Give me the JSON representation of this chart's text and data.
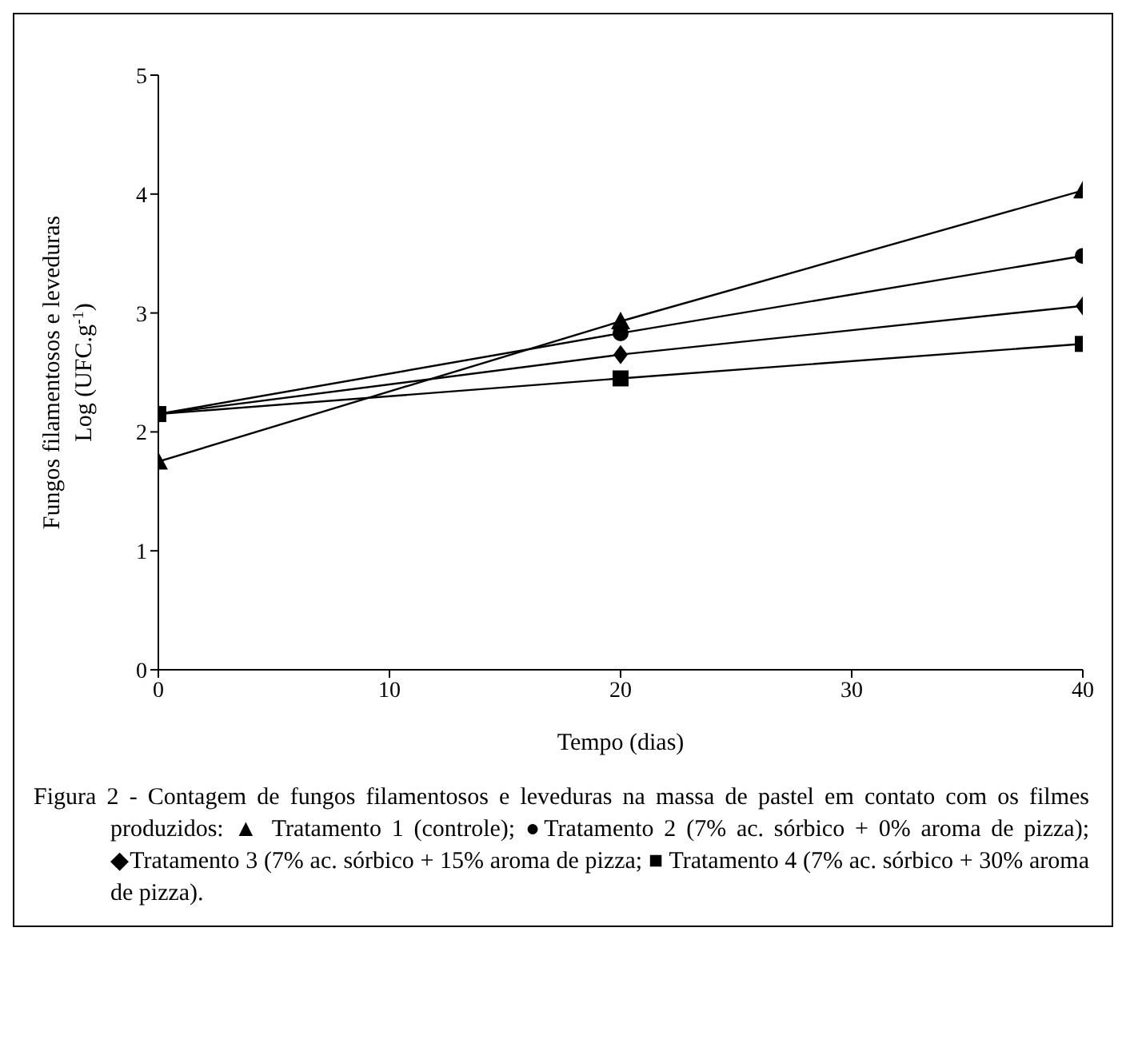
{
  "chart_data": {
    "type": "line",
    "xlabel": "Tempo (dias)",
    "ylabel": "Fungos filamentosos e leveduras\nLog (UFC.g$^{-1}$)",
    "x": [
      0,
      20,
      40
    ],
    "xlim": [
      0,
      40
    ],
    "xticks": [
      0,
      10,
      20,
      30,
      40
    ],
    "ylim": [
      0,
      5
    ],
    "yticks": [
      0,
      1,
      2,
      3,
      4,
      5
    ],
    "grid": false,
    "legend": false,
    "series": [
      {
        "color": "#000000",
        "marker": "triangle",
        "values": [
          1.75,
          2.93,
          4.03
        ]
      },
      {
        "color": "#000000",
        "marker": "circle",
        "values": [
          2.15,
          2.83,
          3.48
        ]
      },
      {
        "color": "#000000",
        "marker": "diamond",
        "values": [
          2.15,
          2.65,
          3.06
        ]
      },
      {
        "color": "#000000",
        "marker": "square",
        "values": [
          2.15,
          2.45,
          2.74
        ]
      }
    ],
    "annotations": [
      "Figura 2 - Contagem de fungos filamentosos e leveduras na massa de pastel em contato com os filmes produzidos: ▲ Tratamento 1 (controle); ●Tratamento 2 (7% ac. sórbico + 0% aroma de pizza); ◆Tratamento 3 (7% ac. sórbico + 15%  aroma de pizza; ■ Tratamento 4 (7% ac. sórbico + 30% aroma de pizza)."
    ]
  }
}
